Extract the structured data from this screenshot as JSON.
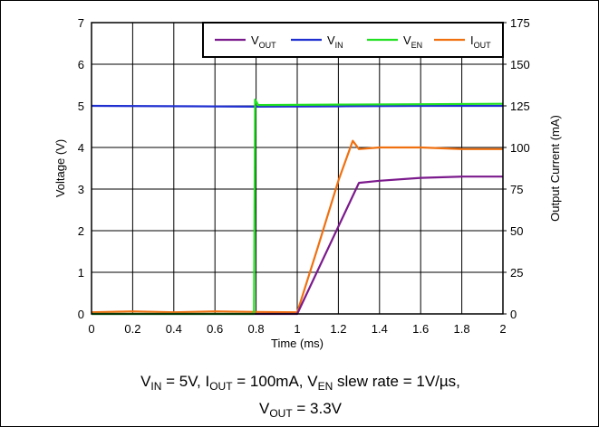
{
  "chart_data": {
    "type": "line",
    "xlabel": "Time (ms)",
    "ylabel": "Voltage (V)",
    "y2label": "Output Current (mA)",
    "xlim": [
      0,
      2
    ],
    "ylim": [
      0,
      7
    ],
    "y2lim": [
      0,
      175
    ],
    "x_ticks": [
      "0",
      "0.2",
      "0.4",
      "0.6",
      "0.8",
      "1",
      "1.2",
      "1.4",
      "1.6",
      "1.8",
      "2"
    ],
    "y_ticks": [
      "0",
      "1",
      "2",
      "3",
      "4",
      "5",
      "6",
      "7"
    ],
    "y2_ticks": [
      "0",
      "25",
      "50",
      "75",
      "100",
      "125",
      "150",
      "175"
    ],
    "grid": true,
    "legend_position": "top-right",
    "series": [
      {
        "name": "V",
        "sub": "OUT",
        "axis": "left",
        "color": "#7b1a8c",
        "points": [
          [
            0,
            0
          ],
          [
            1.0,
            0
          ],
          [
            1.3,
            3.15
          ],
          [
            1.4,
            3.2
          ],
          [
            1.6,
            3.27
          ],
          [
            1.8,
            3.3
          ],
          [
            2.0,
            3.3
          ]
        ]
      },
      {
        "name": "V",
        "sub": "IN",
        "axis": "left",
        "color": "#1f2fd0",
        "points": [
          [
            0,
            5.0
          ],
          [
            0.5,
            4.99
          ],
          [
            0.8,
            4.98
          ],
          [
            1.2,
            4.99
          ],
          [
            1.6,
            5.0
          ],
          [
            2.0,
            5.0
          ]
        ]
      },
      {
        "name": "V",
        "sub": "EN",
        "axis": "left",
        "color": "#22e022",
        "points": [
          [
            0,
            0
          ],
          [
            0.79,
            0
          ],
          [
            0.795,
            5.15
          ],
          [
            0.81,
            5.02
          ],
          [
            1.2,
            5.03
          ],
          [
            1.6,
            5.04
          ],
          [
            2.0,
            5.05
          ]
        ]
      },
      {
        "name": "I",
        "sub": "OUT",
        "axis": "right",
        "color": "#f07010",
        "points": [
          [
            0,
            1
          ],
          [
            0.2,
            1.5
          ],
          [
            0.4,
            1
          ],
          [
            0.6,
            1.5
          ],
          [
            0.8,
            1.2
          ],
          [
            1.0,
            1
          ],
          [
            1.1,
            40
          ],
          [
            1.2,
            80
          ],
          [
            1.27,
            104
          ],
          [
            1.3,
            99
          ],
          [
            1.4,
            100
          ],
          [
            1.6,
            100
          ],
          [
            1.8,
            99
          ],
          [
            2.0,
            99
          ]
        ]
      }
    ]
  },
  "caption": {
    "line1": {
      "a": "V",
      "a_sub": "IN",
      "b": " = 5V, I",
      "b_sub": "OUT",
      "c": " = 100mA, V",
      "c_sub": "EN",
      "d": " slew rate = 1V/µs,"
    },
    "line2": {
      "a": "V",
      "a_sub": "OUT",
      "b": " = 3.3V"
    }
  }
}
